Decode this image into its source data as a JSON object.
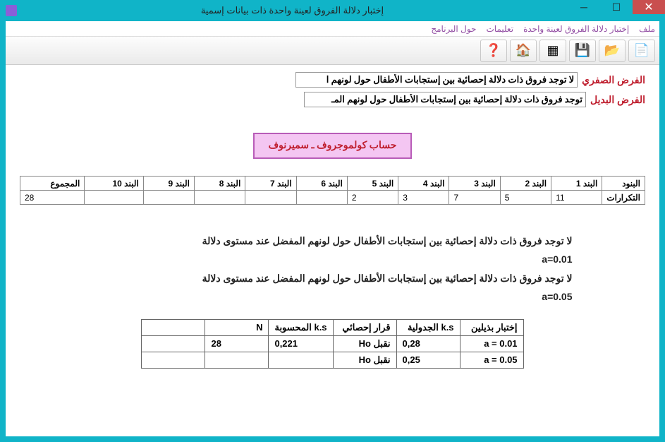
{
  "window": {
    "title": "إختبار دلالة الفروق لعينة واحدة ذات بيانات إسمية"
  },
  "menu": {
    "file": "ملف",
    "test": "إختبار دلالة الفروق لعينة واحدة",
    "instructions": "تعليمات",
    "about": "حول البرنامج"
  },
  "toolbar": {
    "new": "📄",
    "open": "📂",
    "save": "💾",
    "grid": "▦",
    "home": "🏠",
    "help": "❓"
  },
  "hypotheses": {
    "null_label": "الفرض الصفري",
    "null_value": "لا توجد فروق ذات دلالة إحصائية بين إستجابات الأطفال حول لونهم ا",
    "alt_label": "الفرض البديل",
    "alt_value": "توجد فروق ذات دلالة إحصائية بين إستجابات الأطفال حول لونهم المـ"
  },
  "calc_button": "حساب كولموجروف ـ سميرنوف",
  "data_table": {
    "row1_label": "البنود",
    "headers": [
      "البند 1",
      "البند 2",
      "البند 3",
      "البند 4",
      "البند 5",
      "البند 6",
      "البند 7",
      "البند 8",
      "البند 9",
      "البند 10",
      "المجموع"
    ],
    "row2_label": "التكرارات",
    "values": [
      "11",
      "5",
      "7",
      "3",
      "2",
      "",
      "",
      "",
      "",
      "",
      "28"
    ]
  },
  "results": {
    "line1": "لا توجد فروق ذات دلالة إحصائية بين إستجابات الأطفال حول لونهم المفضل عند مستوى دلالة",
    "line1b": "a=0.01",
    "line2": "لا توجد فروق ذات دلالة إحصائية بين إستجابات الأطفال حول لونهم المفضل عند مستوى دلالة",
    "line2b": "a=0.05"
  },
  "results_table": {
    "headers": [
      "إختبار بذيلين",
      "k.s الجدولية",
      "قرار إحصائي",
      "k.s المحسوبة",
      "N",
      ""
    ],
    "rows": [
      [
        "a = 0.01",
        "0,28",
        "نقبل Ho",
        "0,221",
        "28",
        ""
      ],
      [
        "a = 0.05",
        "0,25",
        "نقبل Ho",
        "",
        "",
        ""
      ]
    ]
  },
  "colors": {
    "titlebar": "#10b4c8",
    "close": "#c94f4f",
    "menu_text": "#934fa4",
    "hyp_label": "#bf1e2e",
    "calc_bg": "#f4c6f2",
    "calc_border": "#b85cb8"
  }
}
